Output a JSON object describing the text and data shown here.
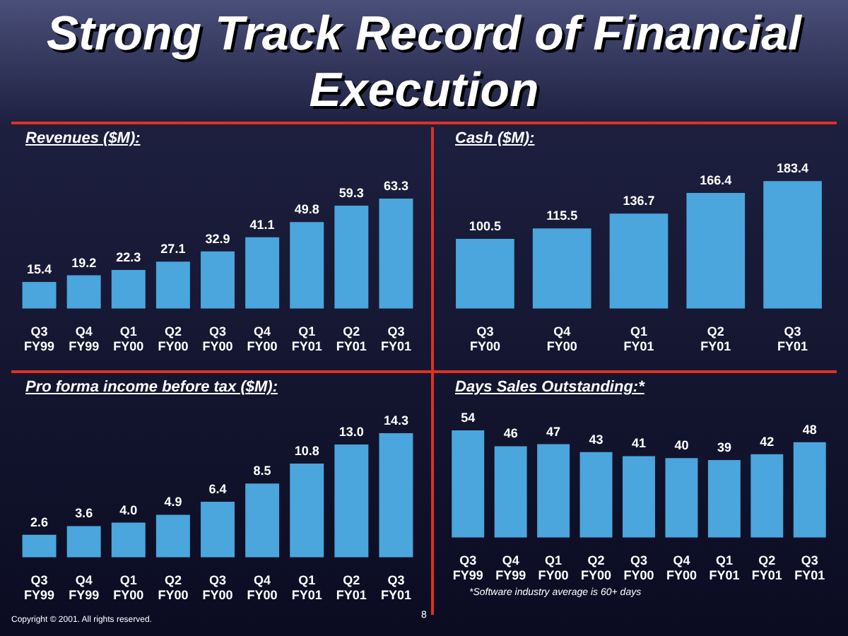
{
  "chart_data": [
    {
      "type": "other",
      "title": "Strong Track Record of Financial Execution",
      "annotations": [
        "8",
        "Copyright © 2001. All rights reserved."
      ]
    },
    {
      "type": "bar",
      "title": "Revenues ($M):",
      "categories": [
        "Q3 FY99",
        "Q4 FY99",
        "Q1 FY00",
        "Q2 FY00",
        "Q3 FY00",
        "Q4 FY00",
        "Q1 FY01",
        "Q2 FY01",
        "Q3 FY01"
      ],
      "values": [
        15.4,
        19.2,
        22.3,
        27.1,
        32.9,
        41.1,
        49.8,
        59.3,
        63.3
      ],
      "color": "#4aa6dc",
      "data_labels": true,
      "grid": false,
      "legend": false
    },
    {
      "type": "bar",
      "title": "Cash ($M):",
      "categories": [
        "Q3 FY00",
        "Q4 FY00",
        "Q1 FY01",
        "Q2 FY01",
        "Q3 FY01"
      ],
      "values": [
        100.5,
        115.5,
        136.7,
        166.4,
        183.4
      ],
      "color": "#4aa6dc",
      "data_labels": true,
      "grid": false,
      "legend": false
    },
    {
      "type": "bar",
      "title": "Pro forma income before tax ($M):",
      "categories": [
        "Q3 FY99",
        "Q4 FY99",
        "Q1 FY00",
        "Q2 FY00",
        "Q3 FY00",
        "Q4 FY00",
        "Q1 FY01",
        "Q2 FY01",
        "Q3 FY01"
      ],
      "values": [
        2.6,
        3.6,
        4.0,
        4.9,
        6.4,
        8.5,
        10.8,
        13.0,
        14.3
      ],
      "value_labels": [
        "2.6",
        "3.6",
        "4.0",
        "4.9",
        "6.4",
        "8.5",
        "10.8",
        "13.0",
        "14.3"
      ],
      "color": "#4aa6dc",
      "grid": false,
      "legend": false
    },
    {
      "type": "bar",
      "title": "Days Sales Outstanding:*",
      "categories": [
        "Q3 FY99",
        "Q4 FY99",
        "Q1 FY00",
        "Q2 FY00",
        "Q3 FY00",
        "Q4 FY00",
        "Q1 FY01",
        "Q2 FY01",
        "Q3 FY01"
      ],
      "values": [
        54,
        46,
        47,
        43,
        41,
        40,
        39,
        42,
        48
      ],
      "color": "#4aa6dc",
      "data_labels": true,
      "grid": false,
      "legend": false,
      "annotations": [
        "*Software industry average is 60+ days"
      ]
    }
  ]
}
